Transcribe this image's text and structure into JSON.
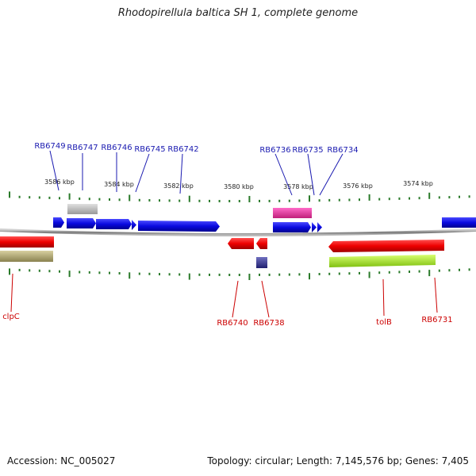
{
  "title": "Rhodopirellula baltica SH 1, complete genome",
  "footer": {
    "accession": "Accession: NC_005027",
    "topology": "Topology: circular; Length: 7,145,576 bp; Genes: 7,405"
  },
  "scale_labels": [
    "3586 kbp",
    "3584 kbp",
    "3582 kbp",
    "3580 kbp",
    "3578 kbp",
    "3576 kbp",
    "3574 kbp"
  ],
  "colors": {
    "forward_strand": "#0a0ae0",
    "reverse_strand": "#ee0000",
    "top_label": "#1a1ab0",
    "bottom_label": "#cc0000",
    "tick": "#2a7a2a",
    "backbone": "#888888"
  },
  "top_gene_labels": [
    "RB6749",
    "RB6747",
    "RB6746",
    "RB6745",
    "RB6742",
    "RB6736",
    "RB6735",
    "RB6734"
  ],
  "bottom_gene_labels": [
    "clpC",
    "RB6740",
    "RB6738",
    "tolB",
    "RB6731"
  ]
}
